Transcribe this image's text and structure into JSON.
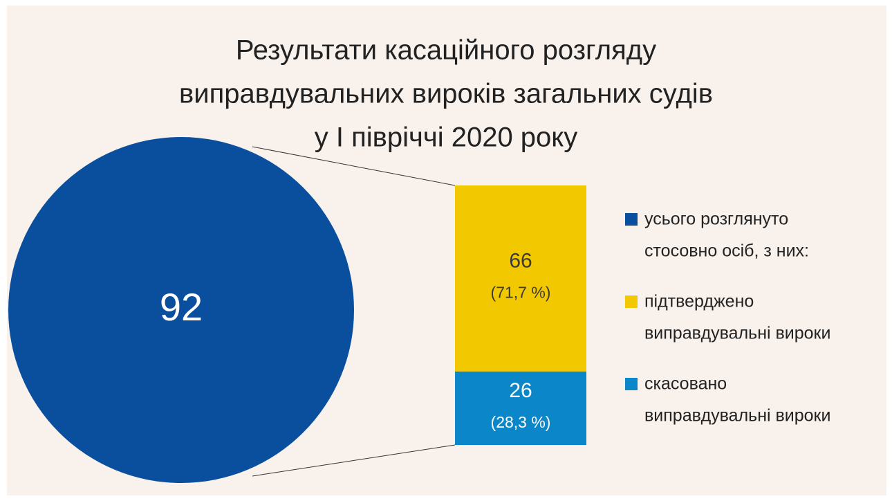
{
  "chart_data": {
    "type": "bar-of-pie",
    "title": [
      "Результати касаційного розгляду",
      "виправдувальних вироків загальних судів",
      "у І півріччі 2020 року"
    ],
    "total": {
      "name": [
        "усього розглянуто",
        "стосовно осіб, з них:"
      ],
      "value": 92,
      "color": "#0a4f9e"
    },
    "series": [
      {
        "name": [
          "підтверджено",
          "виправдувальні вироки"
        ],
        "color": "#f2c800",
        "value": 66,
        "percent": 71.7,
        "percent_label": "(71,7 %)",
        "label_color": "#3a3a3a"
      },
      {
        "name": [
          "скасовано",
          "виправдувальні вироки"
        ],
        "color": "#0b86c9",
        "value": 26,
        "percent": 28.3,
        "percent_label": "(28,3 %)",
        "label_color": "#ffffff"
      }
    ]
  }
}
